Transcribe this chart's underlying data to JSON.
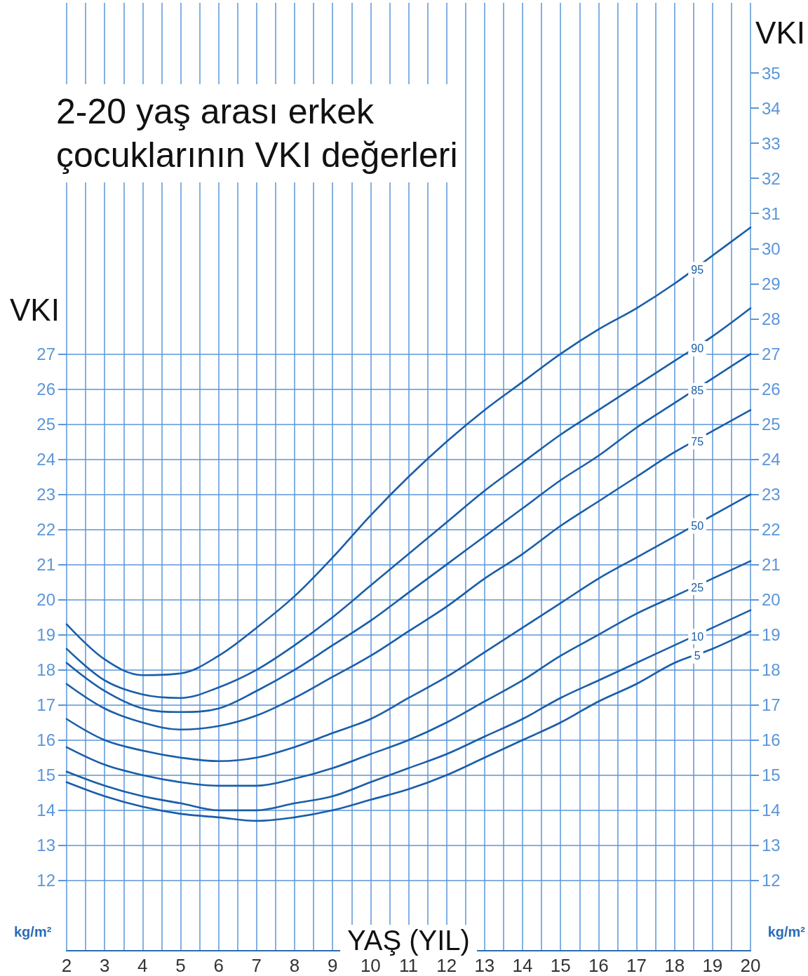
{
  "chart_data": {
    "type": "line",
    "title": "2-20 yaş arası erkek\nçocuklarının VKI değerleri",
    "xlabel": "YAŞ (YIL)",
    "ylabel": "VKI",
    "y2label": "VKI",
    "annotations": [
      "kg/m²",
      "kg/m²"
    ],
    "x": [
      2,
      3,
      4,
      5,
      6,
      7,
      8,
      9,
      10,
      11,
      12,
      13,
      14,
      15,
      16,
      17,
      18,
      19,
      20
    ],
    "series": [
      {
        "name": "95",
        "color": "#1a5ea8",
        "values": [
          19.3,
          18.3,
          17.85,
          17.9,
          18.4,
          19.2,
          20.1,
          21.2,
          22.4,
          23.5,
          24.5,
          25.4,
          26.2,
          27.0,
          27.7,
          28.3,
          29.0,
          29.8,
          30.6
        ]
      },
      {
        "name": "90",
        "color": "#1a5ea8",
        "values": [
          18.6,
          17.7,
          17.3,
          17.2,
          17.5,
          18.0,
          18.7,
          19.5,
          20.4,
          21.3,
          22.2,
          23.1,
          23.9,
          24.7,
          25.4,
          26.1,
          26.8,
          27.5,
          28.3
        ]
      },
      {
        "name": "85",
        "color": "#1a5ea8",
        "values": [
          18.2,
          17.4,
          16.9,
          16.8,
          16.9,
          17.4,
          18.0,
          18.7,
          19.4,
          20.2,
          21.0,
          21.8,
          22.6,
          23.4,
          24.1,
          24.9,
          25.6,
          26.3,
          27.0
        ]
      },
      {
        "name": "75",
        "color": "#1a5ea8",
        "values": [
          17.6,
          16.9,
          16.5,
          16.3,
          16.4,
          16.7,
          17.2,
          17.8,
          18.4,
          19.1,
          19.8,
          20.6,
          21.3,
          22.1,
          22.8,
          23.5,
          24.2,
          24.8,
          25.4
        ]
      },
      {
        "name": "50",
        "color": "#1a5ea8",
        "values": [
          16.6,
          16.0,
          15.7,
          15.5,
          15.4,
          15.5,
          15.8,
          16.2,
          16.6,
          17.2,
          17.8,
          18.5,
          19.2,
          19.9,
          20.6,
          21.2,
          21.8,
          22.4,
          23.0
        ]
      },
      {
        "name": "25",
        "color": "#1a5ea8",
        "values": [
          15.8,
          15.3,
          15.0,
          14.8,
          14.7,
          14.7,
          14.9,
          15.2,
          15.6,
          16.0,
          16.5,
          17.1,
          17.7,
          18.4,
          19.0,
          19.6,
          20.1,
          20.6,
          21.1
        ]
      },
      {
        "name": "10",
        "color": "#1a5ea8",
        "values": [
          15.1,
          14.7,
          14.4,
          14.2,
          14.0,
          14.0,
          14.2,
          14.4,
          14.8,
          15.2,
          15.6,
          16.1,
          16.6,
          17.2,
          17.7,
          18.2,
          18.7,
          19.2,
          19.7
        ]
      },
      {
        "name": "5",
        "color": "#1a5ea8",
        "values": [
          14.8,
          14.4,
          14.1,
          13.9,
          13.8,
          13.7,
          13.8,
          14.0,
          14.3,
          14.6,
          15.0,
          15.5,
          16.0,
          16.5,
          17.1,
          17.6,
          18.2,
          18.6,
          19.1
        ]
      }
    ],
    "xlim": [
      2,
      20
    ],
    "xticks": [
      2,
      3,
      4,
      5,
      6,
      7,
      8,
      9,
      10,
      11,
      12,
      13,
      14,
      15,
      16,
      17,
      18,
      19,
      20
    ],
    "ylim": [
      10,
      37
    ],
    "yticks": [
      12,
      13,
      14,
      15,
      16,
      17,
      18,
      19,
      20,
      21,
      22,
      23,
      24,
      25,
      26,
      27
    ],
    "y2lim": [
      10,
      37
    ],
    "y2ticks": [
      12,
      13,
      14,
      15,
      16,
      17,
      18,
      19,
      20,
      21,
      22,
      23,
      24,
      25,
      26,
      27,
      28,
      29,
      30,
      31,
      32,
      33,
      34,
      35
    ],
    "grid": true,
    "marker": "none",
    "line_style": "solid"
  }
}
